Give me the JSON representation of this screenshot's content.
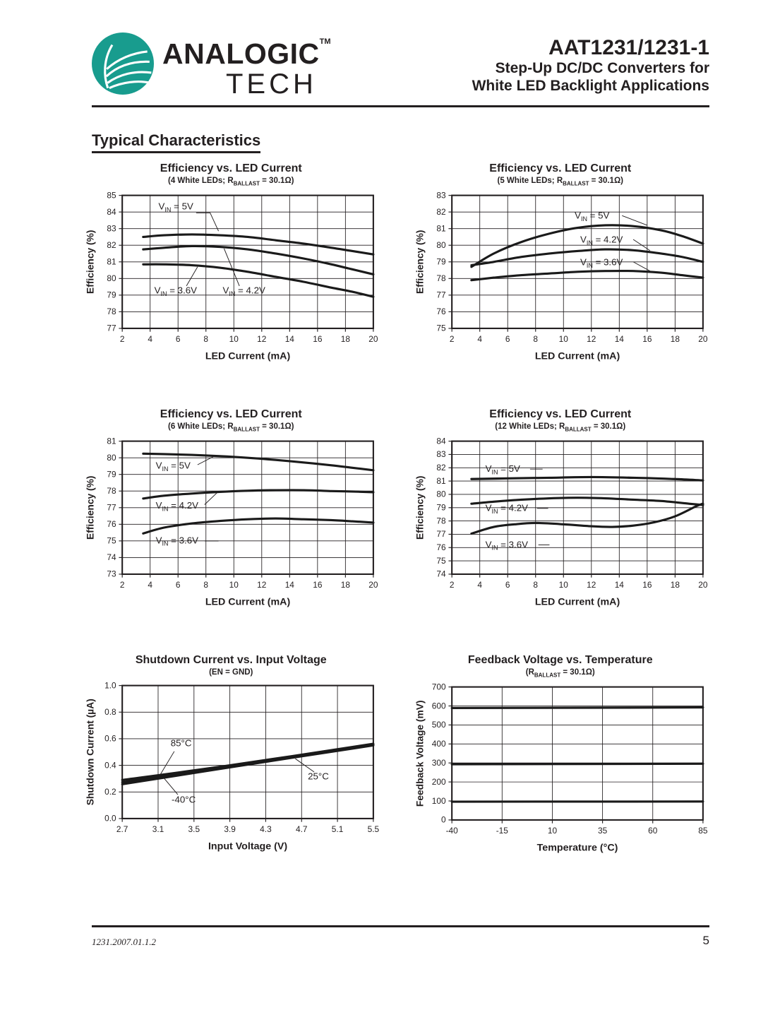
{
  "colors": {
    "logo_teal": "#189C8E",
    "ink": "#231f20"
  },
  "header": {
    "logo": {
      "brand_top": "ANALOGIC",
      "brand_tm": "TM",
      "brand_bottom": "TECH"
    },
    "part_number": "AAT1231/1231-1",
    "subtitle_line1": "Step-Up DC/DC Converters for",
    "subtitle_line2": "White LED Backlight Applications"
  },
  "section_title": "Typical Characteristics",
  "footer": {
    "doc_id": "1231.2007.01.1.2",
    "page_number": "5"
  },
  "chart_data": [
    {
      "type": "line",
      "title": "Efficiency vs. LED Current",
      "subtitle": {
        "pre": "(4 White LEDs; R",
        "sub": "BALLAST",
        "post": " = 30.1Ω)"
      },
      "xlabel": "LED Current (mA)",
      "ylabel": "Efficiency (%)",
      "xlim": [
        2,
        20
      ],
      "ylim": [
        77,
        85
      ],
      "grid": true,
      "xtick_labels": [
        "2",
        "4",
        "6",
        "8",
        "10",
        "12",
        "14",
        "16",
        "18",
        "20"
      ],
      "xtick_values": [
        2,
        4,
        6,
        8,
        10,
        12,
        14,
        16,
        18,
        20
      ],
      "ytick_labels": [
        "77",
        "78",
        "79",
        "80",
        "81",
        "82",
        "83",
        "84",
        "85"
      ],
      "ytick_values": [
        77,
        78,
        79,
        80,
        81,
        82,
        83,
        84,
        85
      ],
      "series": [
        {
          "name": "VIN = 5V",
          "x": [
            3.5,
            5,
            7,
            9,
            11,
            13,
            15,
            17,
            18.5,
            20
          ],
          "y": [
            82.5,
            82.6,
            82.65,
            82.6,
            82.5,
            82.3,
            82.1,
            81.85,
            81.65,
            81.45
          ]
        },
        {
          "name": "VIN = 4.2V",
          "x": [
            3.5,
            5,
            7,
            9,
            11,
            13,
            15,
            17,
            18.5,
            20
          ],
          "y": [
            81.75,
            81.85,
            81.95,
            81.9,
            81.75,
            81.5,
            81.2,
            80.85,
            80.55,
            80.25
          ]
        },
        {
          "name": "VIN = 3.6V",
          "x": [
            3.5,
            5,
            7,
            9,
            11,
            13,
            15,
            17,
            18.5,
            20
          ],
          "y": [
            80.85,
            80.85,
            80.8,
            80.65,
            80.4,
            80.1,
            79.8,
            79.45,
            79.2,
            78.9
          ]
        }
      ],
      "annotations": [
        {
          "pre": "V",
          "sub": "IN",
          "post": " = 5V",
          "x": 4.6,
          "y": 84.15,
          "leader": [
            [
              7.3,
              83.95
            ],
            [
              8.3,
              83.95
            ],
            [
              8.9,
              82.85
            ]
          ]
        },
        {
          "pre": "V",
          "sub": "IN",
          "post": " = 3.6V",
          "x": 4.3,
          "y": 79.1,
          "leader": [
            [
              6.6,
              79.55
            ],
            [
              7.4,
              80.7
            ]
          ]
        },
        {
          "pre": "V",
          "sub": "IN",
          "post": " = 4.2V",
          "x": 9.2,
          "y": 79.1,
          "leader": [
            [
              10.4,
              79.55
            ],
            [
              9.3,
              81.8
            ]
          ]
        }
      ]
    },
    {
      "type": "line",
      "title": "Efficiency vs. LED Current",
      "subtitle": {
        "pre": "(5 White LEDs; R",
        "sub": "BALLAST",
        "post": " = 30.1Ω)"
      },
      "xlabel": "LED Current (mA)",
      "ylabel": "Efficiency (%)",
      "xlim": [
        2,
        20
      ],
      "ylim": [
        75,
        83
      ],
      "grid": true,
      "xtick_labels": [
        "2",
        "4",
        "6",
        "8",
        "10",
        "12",
        "14",
        "16",
        "18",
        "20"
      ],
      "xtick_values": [
        2,
        4,
        6,
        8,
        10,
        12,
        14,
        16,
        18,
        20
      ],
      "ytick_labels": [
        "75",
        "76",
        "77",
        "78",
        "79",
        "80",
        "81",
        "82",
        "83"
      ],
      "ytick_values": [
        75,
        76,
        77,
        78,
        79,
        80,
        81,
        82,
        83
      ],
      "series": [
        {
          "name": "VIN = 5V",
          "x": [
            3.4,
            5,
            7,
            9,
            11,
            13,
            15,
            17,
            18.5,
            20
          ],
          "y": [
            78.7,
            79.5,
            80.2,
            80.7,
            81.05,
            81.2,
            81.15,
            80.9,
            80.55,
            80.1
          ]
        },
        {
          "name": "VIN = 4.2V",
          "x": [
            3.4,
            5,
            7,
            9,
            11,
            13,
            15,
            17,
            18.5,
            20
          ],
          "y": [
            78.8,
            79.0,
            79.3,
            79.5,
            79.65,
            79.75,
            79.7,
            79.5,
            79.3,
            79.0
          ]
        },
        {
          "name": "VIN = 3.6V",
          "x": [
            3.4,
            5,
            7,
            9,
            11,
            13,
            15,
            17,
            18.5,
            20
          ],
          "y": [
            77.9,
            78.05,
            78.2,
            78.3,
            78.4,
            78.45,
            78.45,
            78.35,
            78.2,
            78.05
          ]
        }
      ],
      "annotations": [
        {
          "pre": "V",
          "sub": "IN",
          "post": " = 5V",
          "x": 10.8,
          "y": 81.6,
          "leader": [
            [
              14.2,
              81.78
            ],
            [
              16.0,
              81.2
            ]
          ]
        },
        {
          "pre": "V",
          "sub": "IN",
          "post": " = 4.2V",
          "x": 11.2,
          "y": 80.15,
          "leader": [
            [
              15.0,
              80.35
            ],
            [
              16.2,
              79.68
            ]
          ]
        },
        {
          "pre": "V",
          "sub": "IN",
          "post": " = 3.6V",
          "x": 11.2,
          "y": 78.8,
          "leader": [
            [
              15.0,
              79.0
            ],
            [
              16.2,
              78.45
            ]
          ]
        }
      ]
    },
    {
      "type": "line",
      "title": "Efficiency vs. LED Current",
      "subtitle": {
        "pre": "(6 White LEDs; R",
        "sub": "BALLAST",
        "post": " = 30.1Ω)"
      },
      "xlabel": "LED Current (mA)",
      "ylabel": "Efficiency (%)",
      "xlim": [
        2,
        20
      ],
      "ylim": [
        73,
        81
      ],
      "grid": true,
      "xtick_labels": [
        "2",
        "4",
        "6",
        "8",
        "10",
        "12",
        "14",
        "16",
        "18",
        "20"
      ],
      "xtick_values": [
        2,
        4,
        6,
        8,
        10,
        12,
        14,
        16,
        18,
        20
      ],
      "ytick_labels": [
        "73",
        "74",
        "75",
        "76",
        "77",
        "78",
        "79",
        "80",
        "81"
      ],
      "ytick_values": [
        73,
        74,
        75,
        76,
        77,
        78,
        79,
        80,
        81
      ],
      "series": [
        {
          "name": "VIN = 5V",
          "x": [
            3.5,
            5,
            7,
            9,
            11,
            13,
            15,
            17,
            18.5,
            20
          ],
          "y": [
            80.25,
            80.22,
            80.17,
            80.1,
            80.0,
            79.87,
            79.72,
            79.55,
            79.4,
            79.25
          ]
        },
        {
          "name": "VIN = 4.2V",
          "x": [
            3.5,
            5,
            7,
            9,
            11,
            13,
            15,
            17,
            18.5,
            20
          ],
          "y": [
            77.55,
            77.72,
            77.85,
            77.95,
            78.02,
            78.05,
            78.05,
            78.0,
            77.97,
            77.93
          ]
        },
        {
          "name": "VIN = 3.6V",
          "x": [
            3.5,
            5,
            7,
            9,
            11,
            13,
            15,
            17,
            18.5,
            20
          ],
          "y": [
            75.45,
            75.8,
            76.05,
            76.2,
            76.3,
            76.35,
            76.3,
            76.25,
            76.18,
            76.1
          ]
        }
      ],
      "annotations": [
        {
          "pre": "V",
          "sub": "IN",
          "post": " = 5V",
          "x": 4.4,
          "y": 79.35,
          "leader": [
            [
              7.4,
              79.58
            ],
            [
              8.6,
              80.1
            ]
          ]
        },
        {
          "pre": "V",
          "sub": "IN",
          "post": " = 4.2V",
          "x": 4.4,
          "y": 76.95,
          "leader": [
            [
              7.9,
              77.18
            ],
            [
              8.8,
              77.9
            ]
          ]
        },
        {
          "pre": "V",
          "sub": "IN",
          "post": " = 3.6V",
          "x": 4.4,
          "y": 74.85,
          "leader": [
            [
              7.9,
              75.0
            ],
            [
              8.9,
              75.0
            ]
          ]
        }
      ]
    },
    {
      "type": "line",
      "title": "Efficiency vs. LED Current",
      "subtitle": {
        "pre": "(12 White LEDs; R",
        "sub": "BALLAST",
        "post": " = 30.1Ω)"
      },
      "xlabel": "LED Current (mA)",
      "ylabel": "Efficiency (%)",
      "xlim": [
        2,
        20
      ],
      "ylim": [
        74,
        84
      ],
      "grid": true,
      "xtick_labels": [
        "2",
        "4",
        "6",
        "8",
        "10",
        "12",
        "14",
        "16",
        "18",
        "20"
      ],
      "xtick_values": [
        2,
        4,
        6,
        8,
        10,
        12,
        14,
        16,
        18,
        20
      ],
      "ytick_labels": [
        "74",
        "75",
        "76",
        "77",
        "78",
        "79",
        "80",
        "81",
        "82",
        "83",
        "84"
      ],
      "ytick_values": [
        74,
        75,
        76,
        77,
        78,
        79,
        80,
        81,
        82,
        83,
        84
      ],
      "series": [
        {
          "name": "VIN = 5V",
          "x": [
            3.4,
            6,
            9,
            12,
            15,
            18,
            20
          ],
          "y": [
            81.15,
            81.2,
            81.25,
            81.3,
            81.25,
            81.15,
            81.05
          ]
        },
        {
          "name": "VIN = 4.2V",
          "x": [
            3.4,
            5,
            7,
            9,
            11,
            13,
            15,
            17,
            19,
            20
          ],
          "y": [
            79.3,
            79.45,
            79.6,
            79.7,
            79.75,
            79.7,
            79.6,
            79.5,
            79.3,
            79.2
          ]
        },
        {
          "name": "VIN = 3.6V",
          "x": [
            3.4,
            5,
            6.5,
            8,
            10,
            12,
            13.5,
            15,
            16.5,
            18,
            19.5,
            20
          ],
          "y": [
            77.05,
            77.55,
            77.75,
            77.85,
            77.75,
            77.6,
            77.55,
            77.65,
            77.9,
            78.35,
            79.1,
            79.3
          ]
        }
      ],
      "annotations": [
        {
          "pre": "V",
          "sub": "IN",
          "post": " = 5V",
          "x": 4.4,
          "y": 81.7,
          "leader": [
            [
              7.6,
              81.9
            ],
            [
              8.5,
              81.9
            ]
          ]
        },
        {
          "pre": "V",
          "sub": "IN",
          "post": " = 4.2V",
          "x": 4.4,
          "y": 78.75,
          "leader": [
            [
              8.1,
              78.95
            ],
            [
              8.9,
              78.95
            ]
          ]
        },
        {
          "pre": "V",
          "sub": "IN",
          "post": " = 3.6V",
          "x": 4.4,
          "y": 76.0,
          "leader": [
            [
              8.2,
              76.2
            ],
            [
              9.0,
              76.2
            ]
          ]
        }
      ]
    },
    {
      "type": "line",
      "title": "Shutdown Current vs. Input Voltage",
      "subtitle": {
        "pre": "(EN = GND)",
        "sub": "",
        "post": ""
      },
      "xlabel": "Input Voltage (V)",
      "ylabel": "Shutdown Current (µA)",
      "xlim": [
        2.7,
        5.5
      ],
      "ylim": [
        0,
        1
      ],
      "grid": true,
      "xtick_labels": [
        "2.7",
        "3.1",
        "3.5",
        "3.9",
        "4.3",
        "4.7",
        "5.1",
        "5.5"
      ],
      "xtick_values": [
        2.7,
        3.1,
        3.5,
        3.9,
        4.3,
        4.7,
        5.1,
        5.5
      ],
      "ytick_labels": [
        "0.0",
        "0.2",
        "0.4",
        "0.6",
        "0.8",
        "1.0"
      ],
      "ytick_values": [
        0,
        0.2,
        0.4,
        0.6,
        0.8,
        1.0
      ],
      "series": [
        {
          "name": "85°C",
          "x": [
            2.7,
            3.9,
            5.5
          ],
          "y": [
            0.29,
            0.4,
            0.562
          ]
        },
        {
          "name": "25°C",
          "x": [
            2.7,
            3.9,
            5.5
          ],
          "y": [
            0.273,
            0.392,
            0.556
          ]
        },
        {
          "name": "-40°C",
          "x": [
            2.7,
            3.9,
            5.5
          ],
          "y": [
            0.258,
            0.385,
            0.55
          ]
        }
      ],
      "annotations": [
        {
          "pre": "85°C",
          "sub": "",
          "post": "",
          "x": 3.24,
          "y": 0.545,
          "leader": [
            [
              3.28,
              0.505
            ],
            [
              3.12,
              0.325
            ]
          ]
        },
        {
          "pre": "-40°C",
          "sub": "",
          "post": "",
          "x": 3.25,
          "y": 0.12,
          "leader": [
            [
              3.32,
              0.18
            ],
            [
              3.17,
              0.3
            ]
          ]
        },
        {
          "pre": "25°C",
          "sub": "",
          "post": "",
          "x": 4.77,
          "y": 0.295,
          "leader": [
            [
              4.84,
              0.35
            ],
            [
              4.63,
              0.45
            ]
          ]
        }
      ]
    },
    {
      "type": "line",
      "title": "Feedback Voltage vs. Temperature",
      "subtitle": {
        "pre": "(R",
        "sub": "BALLAST",
        "post": " = 30.1Ω)"
      },
      "xlabel": "Temperature (°C)",
      "ylabel": "Feedback Voltage (mV)",
      "xlim": [
        -40,
        85
      ],
      "ylim": [
        0,
        700
      ],
      "grid": true,
      "xtick_labels": [
        "-40",
        "-15",
        "10",
        "35",
        "60",
        "85"
      ],
      "xtick_values": [
        -40,
        -15,
        10,
        35,
        60,
        85
      ],
      "ytick_labels": [
        "0",
        "100",
        "200",
        "300",
        "400",
        "500",
        "600",
        "700"
      ],
      "ytick_values": [
        0,
        100,
        200,
        300,
        400,
        500,
        600,
        700
      ],
      "series": [
        {
          "x": [
            -40,
            85
          ],
          "y": [
            589,
            592
          ]
        },
        {
          "x": [
            -40,
            85
          ],
          "y": [
            293,
            296
          ]
        },
        {
          "x": [
            -40,
            85
          ],
          "y": [
            96,
            97
          ]
        }
      ],
      "annotations": []
    }
  ]
}
